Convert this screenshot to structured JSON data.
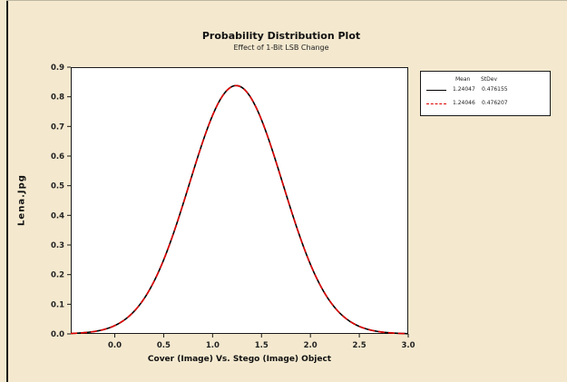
{
  "chart_data": {
    "type": "line",
    "title": "Probability Distribution Plot",
    "subtitle": "Effect of 1-Bit LSB Change",
    "xlabel": "Cover (Image) Vs. Stego (Image) Object",
    "ylabel": "Lena.Jpg",
    "xlim": [
      -0.45,
      3.0
    ],
    "ylim": [
      0.0,
      0.9
    ],
    "x_ticks": [
      0.0,
      0.5,
      1.0,
      1.5,
      2.0,
      2.5,
      3.0
    ],
    "x_tick_labels": [
      "0.0",
      "0.5",
      "1.0",
      "1.5",
      "2.0",
      "2.5",
      "3.0"
    ],
    "y_ticks": [
      0.0,
      0.1,
      0.2,
      0.3,
      0.4,
      0.5,
      0.6,
      0.7,
      0.8,
      0.9
    ],
    "y_tick_labels": [
      "0.0",
      "0.1",
      "0.2",
      "0.3",
      "0.4",
      "0.5",
      "0.6",
      "0.7",
      "0.8",
      "0.9"
    ],
    "grid": false,
    "legend_position": "right",
    "legend_headers": {
      "mean": "Mean",
      "stdev": "StDev"
    },
    "series": [
      {
        "mean_label": "1.24047",
        "stdev_label": "0.476155",
        "mean": 1.24047,
        "stdev": 0.476155,
        "color": "#000000",
        "line_style": "solid"
      },
      {
        "mean_label": "1.24046",
        "stdev_label": "0.476207",
        "mean": 1.24046,
        "stdev": 0.476207,
        "color": "#e00000",
        "line_style": "dashed"
      }
    ]
  },
  "colors": {
    "background": "#f4e9cf",
    "plot_background": "#ffffff",
    "axis": "#1a1a1a"
  }
}
